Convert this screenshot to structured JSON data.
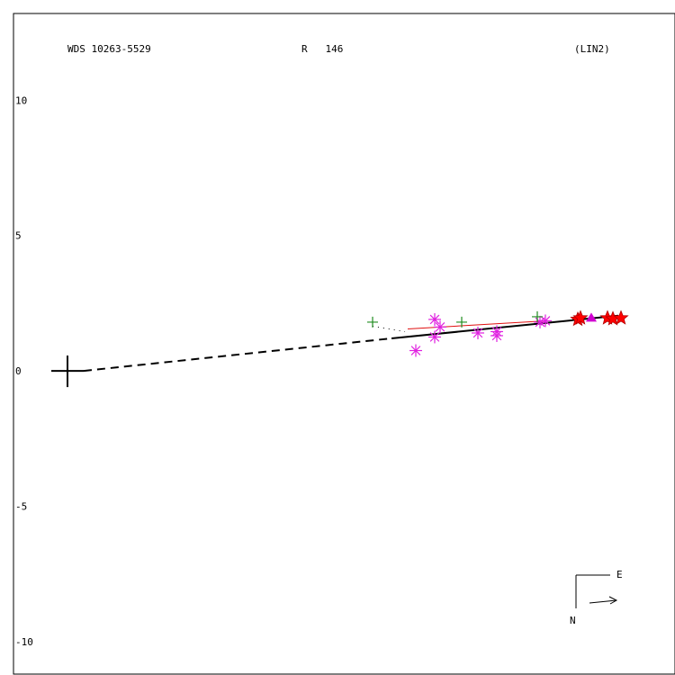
{
  "header": {
    "object": "WDS 10263-5529",
    "ref": "R   146",
    "code": "(LIN2)"
  },
  "compass": {
    "east": "E",
    "north": "N"
  },
  "chart_data": {
    "type": "scatter",
    "title": "WDS 10263-5529",
    "xlim": [
      -2.0,
      22.5
    ],
    "ylim": [
      -11.2,
      13.2
    ],
    "yticks": [
      10,
      5,
      0,
      -5,
      -10
    ],
    "grid": false,
    "legend": "none",
    "colors": {
      "axis": "#000000",
      "fit": "#000000",
      "pa_line": "#e01010",
      "asterisk": "#e020e0",
      "plus": "#208c20",
      "star": "#ff0000",
      "triangle": "#d000d0"
    },
    "primary": {
      "x": 0.0,
      "y": 0.0
    },
    "fit_dashed": [
      [
        0.6,
        0.0
      ],
      [
        12.0,
        1.2
      ]
    ],
    "fit_solid": [
      [
        12.0,
        1.2
      ],
      [
        20.4,
        2.04
      ]
    ],
    "pa_line": [
      [
        12.6,
        1.55
      ],
      [
        17.8,
        1.85
      ]
    ],
    "dotted": [
      [
        11.3,
        1.65
      ],
      [
        12.5,
        1.45
      ]
    ],
    "series": [
      {
        "marker": "asterisk",
        "points": [
          [
            12.9,
            0.75
          ],
          [
            13.6,
            1.9
          ],
          [
            13.6,
            1.25
          ],
          [
            13.8,
            1.62
          ],
          [
            15.2,
            1.4
          ],
          [
            15.9,
            1.3
          ],
          [
            15.9,
            1.45
          ],
          [
            17.5,
            1.8
          ],
          [
            17.7,
            1.85
          ]
        ]
      },
      {
        "marker": "plus",
        "points": [
          [
            11.3,
            1.8
          ],
          [
            14.6,
            1.8
          ],
          [
            17.4,
            2.0
          ]
        ]
      },
      {
        "marker": "star",
        "points": [
          [
            18.9,
            1.9
          ],
          [
            19.0,
            1.95
          ],
          [
            20.0,
            1.95
          ],
          [
            20.2,
            1.92
          ],
          [
            20.5,
            1.95
          ]
        ]
      },
      {
        "marker": "triangle",
        "points": [
          [
            19.4,
            1.95
          ]
        ]
      }
    ]
  }
}
